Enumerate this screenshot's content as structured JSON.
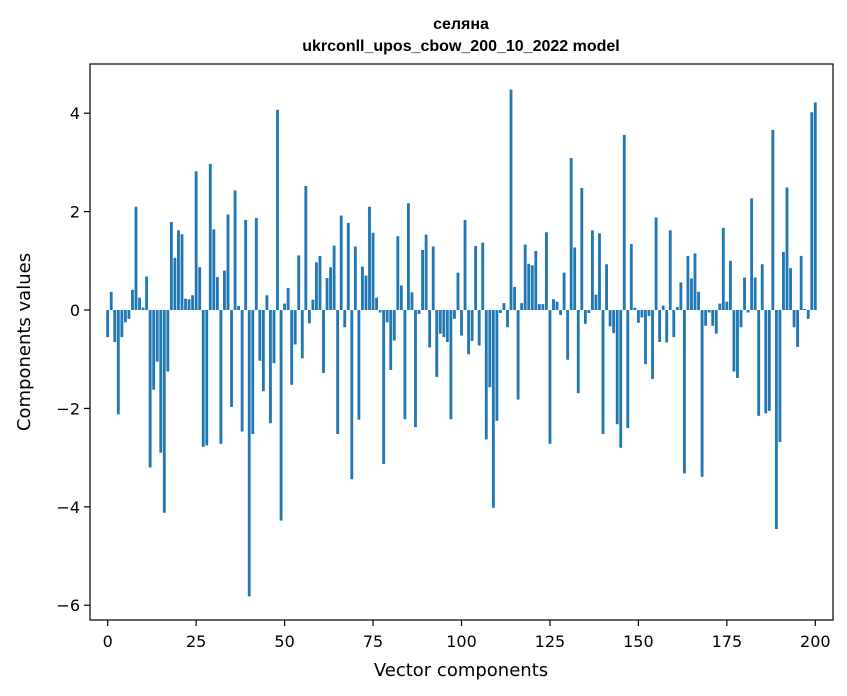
{
  "chart_data": {
    "type": "bar",
    "title": "селяна",
    "subtitle": "ukrconll_upos_cbow_200_10_2022 model",
    "xlabel": "Vector components",
    "ylabel": "Components values",
    "xlim": [
      -5,
      205
    ],
    "ylim": [
      -6.3,
      5.0
    ],
    "xticks": [
      0,
      25,
      50,
      75,
      100,
      125,
      150,
      175,
      200
    ],
    "xtick_labels": [
      "0",
      "25",
      "50",
      "75",
      "100",
      "125",
      "150",
      "175",
      "200"
    ],
    "yticks": [
      -6,
      -4,
      -2,
      0,
      2,
      4
    ],
    "ytick_labels": [
      "−6",
      "−4",
      "−2",
      "0",
      "2",
      "4"
    ],
    "grid": false,
    "bar_color": "#1f77b4",
    "values": [
      -0.55,
      0.37,
      -0.65,
      -2.12,
      -0.55,
      -0.25,
      -0.18,
      0.41,
      2.1,
      0.25,
      0.05,
      0.68,
      -3.2,
      -1.62,
      -1.05,
      -2.9,
      -4.12,
      -1.25,
      1.79,
      1.06,
      1.62,
      1.54,
      0.23,
      0.22,
      0.3,
      2.82,
      0.87,
      -2.78,
      -2.75,
      2.97,
      1.64,
      0.67,
      -2.72,
      0.8,
      1.94,
      -1.97,
      2.43,
      0.08,
      -2.47,
      1.83,
      -5.82,
      -2.52,
      1.87,
      -1.03,
      -1.65,
      0.3,
      -2.3,
      -1.08,
      4.07,
      -4.28,
      0.13,
      0.45,
      -1.52,
      -0.7,
      1.11,
      -0.98,
      2.52,
      -0.27,
      0.21,
      0.97,
      1.1,
      -1.28,
      0.65,
      0.87,
      1.31,
      -2.52,
      1.92,
      -0.35,
      1.77,
      -3.44,
      1.29,
      -2.23,
      0.88,
      0.7,
      2.1,
      1.57,
      0.25,
      -0.05,
      -3.13,
      -0.25,
      -1.22,
      -0.62,
      1.5,
      0.5,
      -2.22,
      2.17,
      0.36,
      -2.38,
      -0.08,
      1.22,
      1.53,
      -0.76,
      1.29,
      -1.36,
      -0.48,
      -0.55,
      -0.65,
      -2.22,
      -0.18,
      0.76,
      -0.52,
      1.83,
      -0.9,
      -0.63,
      1.3,
      -0.72,
      1.37,
      -2.63,
      -1.57,
      -4.02,
      -2.25,
      -0.06,
      0.14,
      -0.35,
      4.48,
      0.47,
      -1.82,
      0.14,
      1.33,
      0.94,
      0.91,
      1.2,
      0.12,
      0.12,
      1.58,
      -2.72,
      0.22,
      0.17,
      -0.1,
      0.76,
      -1.01,
      3.09,
      1.27,
      -1.69,
      2.48,
      -0.28,
      -0.06,
      1.62,
      0.31,
      1.56,
      -2.52,
      0.93,
      -0.33,
      -0.47,
      -2.32,
      -2.8,
      3.56,
      -2.4,
      1.34,
      0.05,
      -0.26,
      -0.15,
      -1.1,
      -0.12,
      -1.4,
      1.88,
      -0.65,
      0.09,
      -0.66,
      1.62,
      -0.55,
      0.06,
      0.56,
      -3.32,
      1.1,
      0.64,
      1.15,
      0.37,
      -3.39,
      -0.32,
      -0.05,
      -0.32,
      -0.48,
      0.13,
      1.67,
      0.17,
      1.0,
      -1.25,
      -1.38,
      -0.35,
      0.66,
      -0.05,
      2.27,
      0.66,
      -2.15,
      0.93,
      -2.1,
      -2.05,
      3.66,
      -4.45,
      -2.68,
      1.18,
      2.49,
      0.85,
      -0.35,
      -0.75,
      1.1,
      0.02,
      -0.18,
      4.02,
      4.22
    ]
  }
}
